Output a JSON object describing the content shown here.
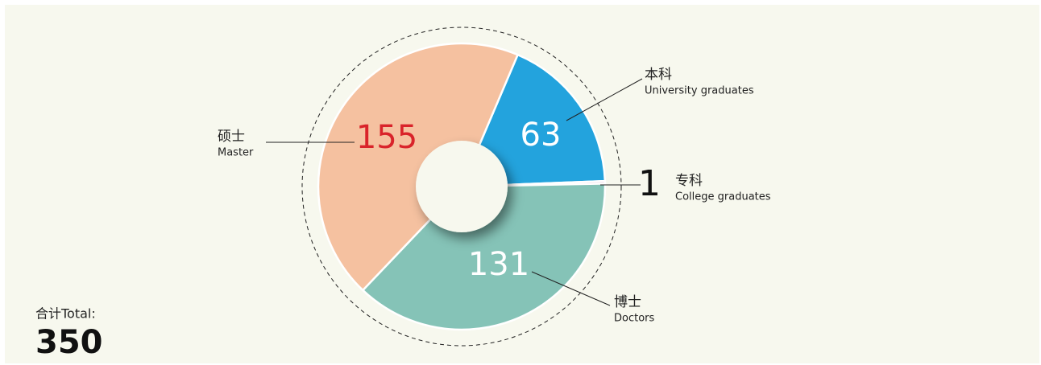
{
  "chart_data": {
    "type": "pie",
    "categories": [
      "本科",
      "专科",
      "博士",
      "硕士"
    ],
    "category_subtitles": [
      "University graduates",
      "College graduates",
      "Doctors",
      "Master"
    ],
    "values": [
      63,
      1,
      131,
      155
    ],
    "colors": [
      "#23a3dd",
      "#e9c9dc",
      "#85c3b7",
      "#f5c1a0"
    ],
    "value_label_colors": [
      "#ffffff",
      "#111111",
      "#ffffff",
      "#d9232a"
    ],
    "start_angle": 23,
    "total_label": "合计Total:",
    "total": 350
  }
}
